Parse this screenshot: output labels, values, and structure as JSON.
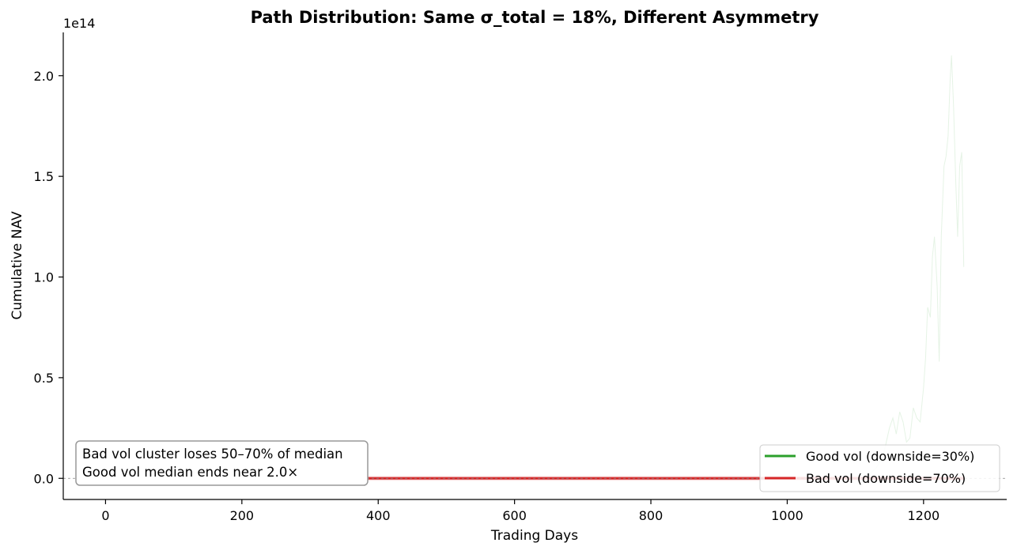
{
  "chart_data": {
    "type": "line",
    "title": "Path Distribution: Same σ_total = 18%, Different Asymmetry",
    "xlabel": "Trading Days",
    "ylabel": "Cumulative NAV",
    "y_offset_text": "1e14",
    "xlim": [
      -62,
      1322
    ],
    "ylim": [
      -0.105,
      2.215
    ],
    "y_scale_multiplier": 100000000000000.0,
    "x_ticks": [
      0,
      200,
      400,
      600,
      800,
      1000,
      1200
    ],
    "x_tick_labels": [
      "0",
      "200",
      "400",
      "600",
      "800",
      "1000",
      "1200"
    ],
    "y_ticks": [
      0.0,
      0.5,
      1.0,
      1.5,
      2.0
    ],
    "y_tick_labels": [
      "0.0",
      "0.5",
      "1.0",
      "1.5",
      "2.0"
    ],
    "grid": false,
    "reference_line": {
      "y": 0.0,
      "style": "dashed"
    },
    "legend": {
      "placement": "lower-right",
      "entries": [
        {
          "label": "Good vol (downside=30%)",
          "color": "#2ca02c"
        },
        {
          "label": "Bad vol (downside=70%)",
          "color": "#d62728"
        }
      ]
    },
    "annotation": {
      "placement": "lower-left",
      "lines": [
        "Bad vol cluster loses 50–70% of median",
        "Good vol median ends near 2.0×"
      ]
    },
    "series": [
      {
        "name": "Good vol (downside=30%)",
        "color": "#2ca02c",
        "role": "faint path (outlier)",
        "x": [
          1120,
          1130,
          1140,
          1150,
          1155,
          1160,
          1165,
          1170,
          1175,
          1180,
          1185,
          1190,
          1195,
          1200,
          1203,
          1206,
          1210,
          1213,
          1216,
          1220,
          1223,
          1226,
          1230,
          1233,
          1236,
          1239,
          1241,
          1244,
          1247,
          1250,
          1253,
          1256,
          1259
        ],
        "values": [
          0.02,
          0.05,
          0.1,
          0.25,
          0.3,
          0.22,
          0.33,
          0.28,
          0.18,
          0.2,
          0.35,
          0.3,
          0.28,
          0.45,
          0.6,
          0.85,
          0.8,
          1.1,
          1.2,
          0.95,
          0.58,
          1.2,
          1.55,
          1.6,
          1.7,
          1.98,
          2.1,
          1.85,
          1.5,
          1.2,
          1.55,
          1.62,
          1.05
        ]
      },
      {
        "name": "Bad vol (downside=70%)",
        "color": "#d62728",
        "role": "median band (near zero at this scale)",
        "x": [
          0,
          1260
        ],
        "values": [
          0.0,
          0.0
        ]
      }
    ]
  }
}
